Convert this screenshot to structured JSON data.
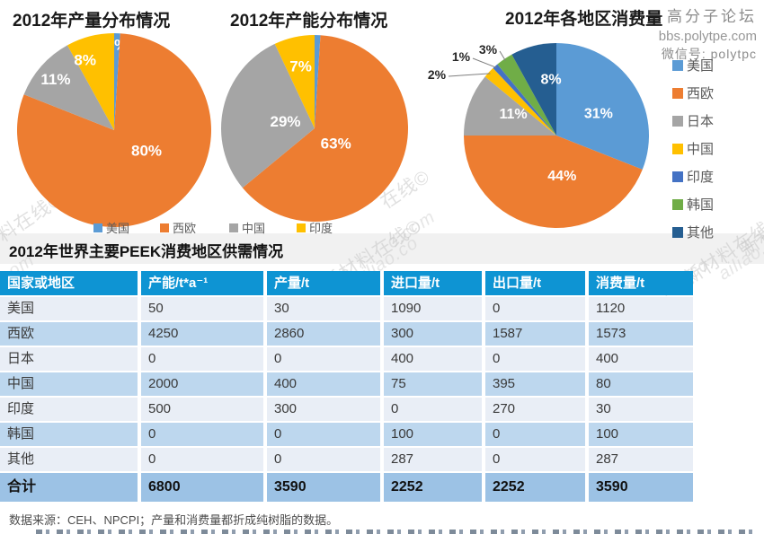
{
  "chart_data": [
    {
      "type": "pie",
      "title": "2012年产量分布情况",
      "labels": [
        "美国",
        "西欧",
        "中国",
        "印度"
      ],
      "values": [
        1,
        80,
        11,
        8
      ],
      "colors": [
        "#5B9BD5",
        "#ED7D31",
        "#A5A5A5",
        "#FFC000"
      ],
      "legend_position": "bottom",
      "label_format": "percent"
    },
    {
      "type": "pie",
      "title": "2012年产能分布情况",
      "labels": [
        "美国",
        "西欧",
        "中国",
        "印度"
      ],
      "values": [
        1,
        63,
        29,
        7
      ],
      "colors": [
        "#5B9BD5",
        "#ED7D31",
        "#A5A5A5",
        "#FFC000"
      ],
      "legend_position": "bottom",
      "label_format": "percent"
    },
    {
      "type": "pie",
      "title": "2012年各地区消费量",
      "labels": [
        "美国",
        "西欧",
        "日本",
        "中国",
        "印度",
        "韩国",
        "其他"
      ],
      "values": [
        31,
        44,
        11,
        2,
        1,
        3,
        8
      ],
      "colors": [
        "#5B9BD5",
        "#ED7D31",
        "#A5A5A5",
        "#FFC000",
        "#4472C4",
        "#70AD47",
        "#255E91"
      ],
      "legend_position": "right",
      "label_format": "percent"
    }
  ],
  "shared_legend": {
    "items": [
      {
        "label": "美国",
        "color": "#5B9BD5"
      },
      {
        "label": "西欧",
        "color": "#ED7D31"
      },
      {
        "label": "中国",
        "color": "#A5A5A5"
      },
      {
        "label": "印度",
        "color": "#FFC000"
      }
    ]
  },
  "watermark": {
    "forum": "高分子论坛",
    "site": "bbs.polytpe.com",
    "wechat": "微信号: polytpc",
    "tiles": [
      "材料在线©",
      "o.com",
      "在线©",
      "o.com",
      "新材料在线©",
      "ailiao.co",
      "新材料在线©",
      "ailiao.co",
      "iao.co",
      "新材料在线©"
    ]
  },
  "table": {
    "title": "2012年世界主要PEEK消费地区供需情况",
    "headers": [
      "国家或地区",
      "产能/t*a⁻¹",
      "产量/t",
      "进口量/t",
      "出口量/t",
      "消费量/t"
    ],
    "rows": [
      [
        "美国",
        "50",
        "30",
        "1090",
        "0",
        "1120"
      ],
      [
        "西欧",
        "4250",
        "2860",
        "300",
        "1587",
        "1573"
      ],
      [
        "日本",
        "0",
        "0",
        "400",
        "0",
        "400"
      ],
      [
        "中国",
        "2000",
        "400",
        "75",
        "395",
        "80"
      ],
      [
        "印度",
        "500",
        "300",
        "0",
        "270",
        "30"
      ],
      [
        "韩国",
        "0",
        "0",
        "100",
        "0",
        "100"
      ],
      [
        "其他",
        "0",
        "0",
        "287",
        "0",
        "287"
      ]
    ],
    "total_row": [
      "合计",
      "6800",
      "3590",
      "2252",
      "2252",
      "3590"
    ],
    "source_note": "数据来源：CEH、NPCPI；产量和消费量都折成纯树脂的数据。"
  },
  "colors": {
    "table_header_bg": "#0E94D3",
    "row_light": "#E9EEF6",
    "row_blue": "#BDD7EE",
    "total_row_bg": "#9CC2E5",
    "title_band_bg": "#F1F1F1"
  }
}
